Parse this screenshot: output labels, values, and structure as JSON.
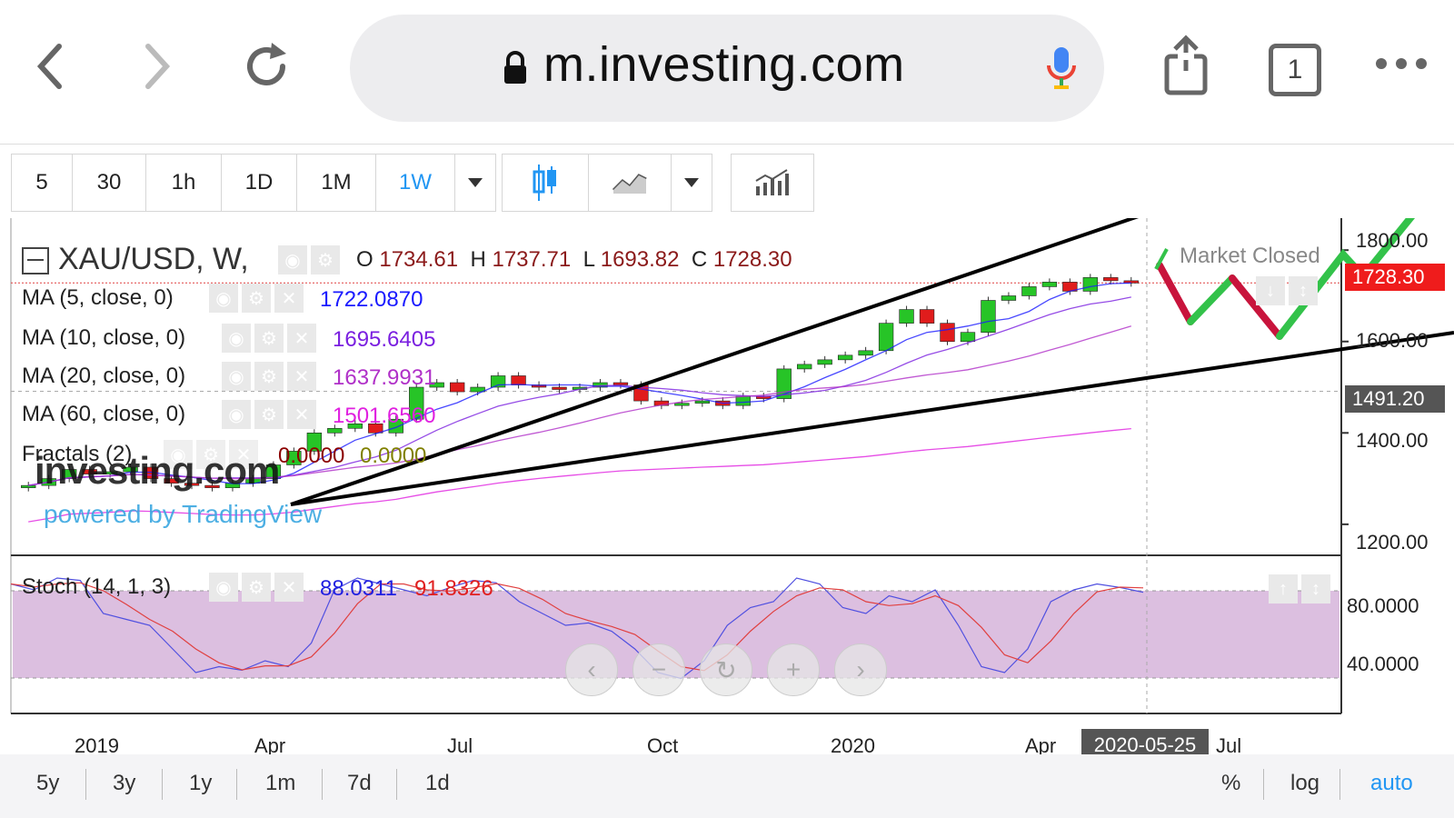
{
  "browser": {
    "url": "m.investing.com",
    "tab_count": "1"
  },
  "toolbar": {
    "intervals": [
      "5",
      "30",
      "1h",
      "1D",
      "1M",
      "1W"
    ],
    "active_interval": "1W"
  },
  "chart_header": {
    "symbol": "XAU/USD, W,",
    "open_label": "O",
    "open": "1734.61",
    "high_label": "H",
    "high": "1737.71",
    "low_label": "L",
    "low": "1693.82",
    "close_label": "C",
    "close": "1728.30",
    "status": "Market Closed"
  },
  "indicators": [
    {
      "label": "MA (5, close, 0)",
      "value": "1722.0870",
      "color": "#1a1aff"
    },
    {
      "label": "MA (10, close, 0)",
      "value": "1695.6405",
      "color": "#7a1fe0"
    },
    {
      "label": "MA (20, close, 0)",
      "value": "1637.9931",
      "color": "#b030c8"
    },
    {
      "label": "MA (60, close, 0)",
      "value": "1501.6560",
      "color": "#e020e0"
    },
    {
      "label": "Fractals (2)",
      "value1": "0.0000",
      "value2": "0.0000",
      "color1": "#8b0000",
      "color2": "#808000"
    }
  ],
  "stoch": {
    "label": "Stoch (14, 1, 3)",
    "k": "88.0311",
    "d": "91.8326",
    "k_color": "#2020e0",
    "d_color": "#e02020"
  },
  "watermark": {
    "brand": "investing.com",
    "powered": "powered by TradingView"
  },
  "price_axis": {
    "ticks": [
      "1800.00",
      "1600.00",
      "1400.00",
      "1200.00"
    ],
    "current_price": "1728.30",
    "crosshair_price": "1491.20"
  },
  "stoch_axis": {
    "ticks": [
      "80.0000",
      "40.0000"
    ]
  },
  "time_axis": {
    "ticks": [
      "2019",
      "Apr",
      "Jul",
      "Oct",
      "2020",
      "Apr",
      "Jul"
    ],
    "crosshair_date": "2020-05-25"
  },
  "bottom_bar": {
    "ranges": [
      "5y",
      "3y",
      "1y",
      "1m",
      "7d",
      "1d"
    ],
    "options": [
      "%",
      "log",
      "auto"
    ]
  },
  "colors": {
    "up": "#27c427",
    "down": "#e01c1c",
    "current_price_bg": "#ef1c1c",
    "crosshair_bg": "#555",
    "stoch_band": "#dcbfe0",
    "drawing_red": "#c8143c",
    "drawing_green": "#33c24a"
  },
  "chart_data": {
    "type": "candlestick",
    "symbol": "XAU/USD",
    "interval": "W",
    "y_range": [
      1150,
      1870
    ],
    "approx_closes": [
      1285,
      1300,
      1320,
      1310,
      1315,
      1325,
      1300,
      1290,
      1285,
      1280,
      1290,
      1300,
      1330,
      1360,
      1400,
      1410,
      1420,
      1400,
      1430,
      1500,
      1510,
      1490,
      1500,
      1525,
      1505,
      1500,
      1495,
      1500,
      1510,
      1505,
      1470,
      1460,
      1465,
      1470,
      1460,
      1480,
      1475,
      1540,
      1550,
      1560,
      1570,
      1580,
      1640,
      1670,
      1640,
      1600,
      1620,
      1690,
      1700,
      1720,
      1730,
      1710,
      1740,
      1733,
      1728
    ]
  }
}
